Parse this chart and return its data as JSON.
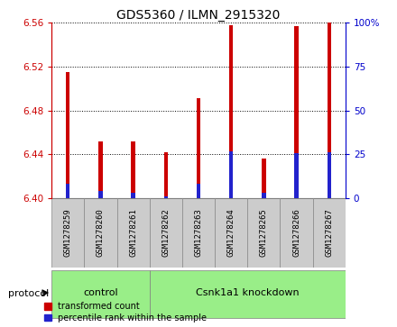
{
  "title": "GDS5360 / ILMN_2915320",
  "samples": [
    "GSM1278259",
    "GSM1278260",
    "GSM1278261",
    "GSM1278262",
    "GSM1278263",
    "GSM1278264",
    "GSM1278265",
    "GSM1278266",
    "GSM1278267"
  ],
  "red_values": [
    6.515,
    6.452,
    6.452,
    6.442,
    6.491,
    6.558,
    6.436,
    6.557,
    6.56
  ],
  "blue_values": [
    6.413,
    6.407,
    6.405,
    6.402,
    6.413,
    6.443,
    6.405,
    6.441,
    6.442
  ],
  "ymin": 6.4,
  "ymax": 6.56,
  "y_ticks": [
    6.4,
    6.44,
    6.48,
    6.52,
    6.56
  ],
  "right_yticks": [
    0,
    25,
    50,
    75,
    100
  ],
  "right_yticklabels": [
    "0",
    "25",
    "50",
    "75",
    "100%"
  ],
  "protocol_groups": [
    {
      "label": "control",
      "start": 0,
      "end": 2
    },
    {
      "label": "Csnk1a1 knockdown",
      "start": 3,
      "end": 8
    }
  ],
  "protocol_label": "protocol",
  "legend_red": "transformed count",
  "legend_blue": "percentile rank within the sample",
  "bar_width": 0.12,
  "red_color": "#cc0000",
  "blue_color": "#2222cc",
  "left_axis_color": "#cc0000",
  "right_axis_color": "#0000cc",
  "green_color": "#99ee88",
  "gray_cell_color": "#cccccc",
  "cell_edge_color": "#888888"
}
